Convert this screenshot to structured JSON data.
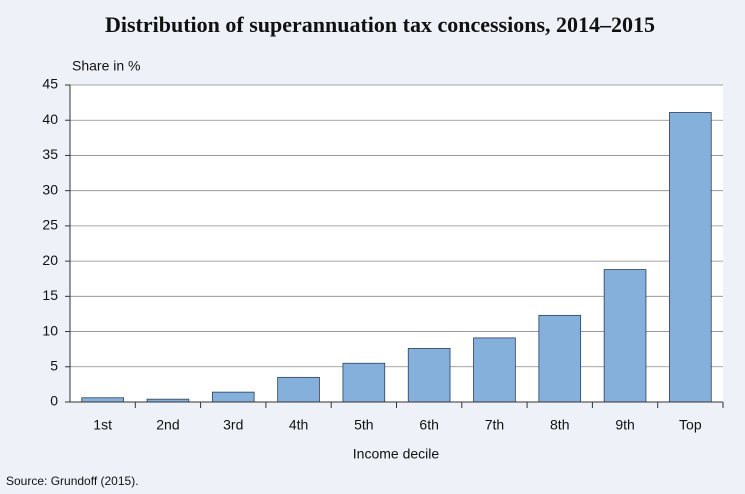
{
  "chart_data": {
    "type": "bar",
    "title": "Distribution of superannuation tax concessions, 2014–2015",
    "y_label": "Share in %",
    "x_label": "Income decile",
    "source": "Source: Grundoff (2015).",
    "categories": [
      "1st",
      "2nd",
      "3rd",
      "4th",
      "5th",
      "6th",
      "7th",
      "8th",
      "9th",
      "Top"
    ],
    "values": [
      0.6,
      0.4,
      1.4,
      3.5,
      5.5,
      7.6,
      9.1,
      12.3,
      18.8,
      41.1
    ],
    "color": "#84b0db",
    "ylim": [
      0,
      45
    ],
    "yticks": [
      0,
      5,
      10,
      15,
      20,
      25,
      30,
      35,
      40,
      45
    ],
    "grid": true
  }
}
